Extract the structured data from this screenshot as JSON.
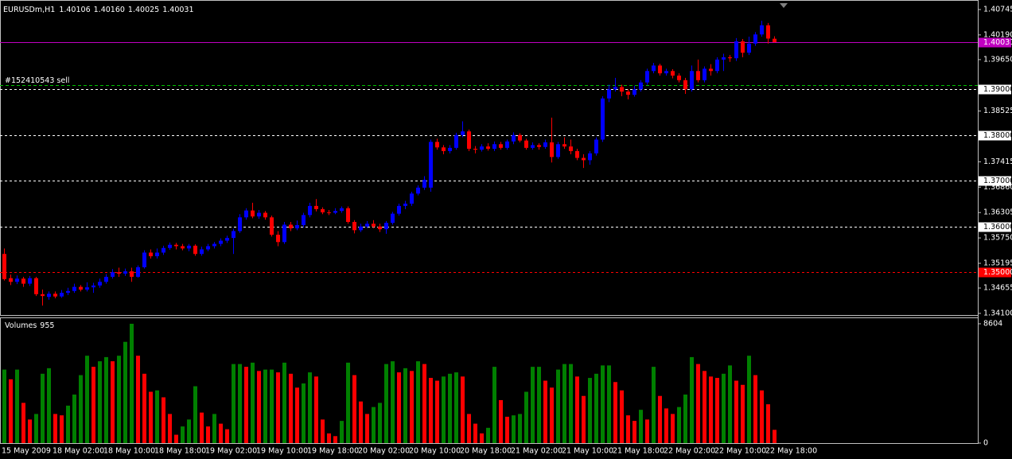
{
  "chart_data": [
    {
      "type": "candlestick",
      "title": "EURUSDm,H1",
      "ohlc_labels": [
        "1.40106",
        "1.40160",
        "1.40025",
        "1.40031"
      ],
      "categories": [
        "15 May 2009",
        null,
        null,
        null,
        null,
        null,
        null,
        null,
        "18 May 02:00",
        null,
        null,
        null,
        null,
        null,
        null,
        null,
        "18 May 10:00",
        null,
        null,
        null,
        null,
        null,
        null,
        null,
        "18 May 18:00",
        null,
        null,
        null,
        null,
        null,
        null,
        null,
        "19 May 02:00",
        null,
        null,
        null,
        null,
        null,
        null,
        null,
        "19 May 10:00",
        null,
        null,
        null,
        null,
        null,
        null,
        null,
        "19 May 18:00",
        null,
        null,
        null,
        null,
        null,
        null,
        null,
        "20 May 02:00",
        null,
        null,
        null,
        null,
        null,
        null,
        null,
        "20 May 10:00",
        null,
        null,
        null,
        null,
        null,
        null,
        null,
        "20 May 18:00",
        null,
        null,
        null,
        null,
        null,
        null,
        null,
        "21 May 02:00",
        null,
        null,
        null,
        null,
        null,
        null,
        null,
        "21 May 10:00",
        null,
        null,
        null,
        null,
        null,
        null,
        null,
        "21 May 18:00",
        null,
        null,
        null,
        null,
        null,
        null,
        null,
        "22 May 02:00",
        null,
        null,
        null,
        null,
        null,
        null,
        null,
        "22 May 10:00",
        null,
        null,
        null,
        null,
        null,
        null,
        null,
        "22 May 18:00",
        null
      ],
      "open": [
        1.354,
        1.3487,
        1.3479,
        1.3486,
        1.3475,
        1.3487,
        1.3452,
        1.3446,
        1.3453,
        1.3447,
        1.3455,
        1.3459,
        1.3468,
        1.3462,
        1.3467,
        1.3471,
        1.3479,
        1.349,
        1.35,
        1.3497,
        1.3502,
        1.349,
        1.3511,
        1.3543,
        1.3535,
        1.3543,
        1.3553,
        1.356,
        1.3557,
        1.3552,
        1.3558,
        1.354,
        1.355,
        1.3557,
        1.3562,
        1.3569,
        1.3575,
        1.359,
        1.362,
        1.3635,
        1.3622,
        1.363,
        1.362,
        1.3582,
        1.3566,
        1.3604,
        1.3596,
        1.3603,
        1.3625,
        1.3645,
        1.3638,
        1.3631,
        1.363,
        1.3634,
        1.364,
        1.361,
        1.3592,
        1.36,
        1.3606,
        1.36,
        1.3594,
        1.3608,
        1.3628,
        1.3645,
        1.365,
        1.3672,
        1.3685,
        1.3685,
        1.3785,
        1.3773,
        1.3765,
        1.3772,
        1.38,
        1.3808,
        1.377,
        1.3768,
        1.3775,
        1.377,
        1.378,
        1.3772,
        1.3786,
        1.38,
        1.3788,
        1.3772,
        1.3778,
        1.3774,
        1.3784,
        1.3752,
        1.378,
        1.3775,
        1.3765,
        1.375,
        1.3745,
        1.376,
        1.379,
        1.388,
        1.39,
        1.3905,
        1.3895,
        1.3888,
        1.39,
        1.3915,
        1.394,
        1.3952,
        1.3935,
        1.394,
        1.393,
        1.392,
        1.39,
        1.394,
        1.392,
        1.3945,
        1.394,
        1.3965,
        1.397,
        1.3968,
        1.4005,
        1.398,
        1.4,
        1.402,
        1.404,
        1.40106
      ],
      "high": [
        1.3552,
        1.3495,
        1.3493,
        1.349,
        1.3492,
        1.349,
        1.3462,
        1.3458,
        1.3458,
        1.3461,
        1.3466,
        1.3475,
        1.3472,
        1.3478,
        1.3477,
        1.3486,
        1.3496,
        1.3507,
        1.351,
        1.3508,
        1.351,
        1.3515,
        1.3548,
        1.355,
        1.3552,
        1.3558,
        1.3565,
        1.3564,
        1.3562,
        1.3562,
        1.3561,
        1.3556,
        1.3562,
        1.3566,
        1.3574,
        1.358,
        1.3595,
        1.3627,
        1.364,
        1.3652,
        1.3636,
        1.3634,
        1.3624,
        1.359,
        1.361,
        1.361,
        1.3613,
        1.363,
        1.3652,
        1.366,
        1.3642,
        1.3636,
        1.364,
        1.3644,
        1.3644,
        1.3614,
        1.3606,
        1.3612,
        1.3614,
        1.3606,
        1.3612,
        1.3632,
        1.365,
        1.3656,
        1.3676,
        1.369,
        1.371,
        1.379,
        1.3792,
        1.3778,
        1.3778,
        1.3805,
        1.383,
        1.3812,
        1.3776,
        1.378,
        1.3782,
        1.3786,
        1.3785,
        1.379,
        1.3806,
        1.3804,
        1.3792,
        1.3784,
        1.3782,
        1.379,
        1.3838,
        1.3785,
        1.3795,
        1.379,
        1.377,
        1.3758,
        1.3765,
        1.3795,
        1.3885,
        1.391,
        1.3925,
        1.391,
        1.39,
        1.3908,
        1.392,
        1.3945,
        1.3958,
        1.3956,
        1.3945,
        1.3944,
        1.3935,
        1.3925,
        1.3952,
        1.3965,
        1.395,
        1.3955,
        1.397,
        1.3978,
        1.3975,
        1.4012,
        1.401,
        1.4015,
        1.4025,
        1.405,
        1.4045,
        1.4016
      ],
      "low": [
        1.3482,
        1.3472,
        1.3474,
        1.3468,
        1.347,
        1.3448,
        1.3427,
        1.344,
        1.3443,
        1.3444,
        1.345,
        1.3455,
        1.3458,
        1.3458,
        1.3455,
        1.3466,
        1.3475,
        1.3486,
        1.349,
        1.3492,
        1.3479,
        1.3488,
        1.3508,
        1.353,
        1.353,
        1.3538,
        1.3549,
        1.355,
        1.3548,
        1.3546,
        1.3536,
        1.3536,
        1.3546,
        1.3552,
        1.3557,
        1.3564,
        1.354,
        1.3586,
        1.3615,
        1.3618,
        1.3617,
        1.3615,
        1.3578,
        1.3557,
        1.3562,
        1.359,
        1.3592,
        1.3598,
        1.362,
        1.3633,
        1.3627,
        1.3625,
        1.3627,
        1.363,
        1.3606,
        1.3585,
        1.3588,
        1.3596,
        1.3596,
        1.3588,
        1.3584,
        1.3604,
        1.3624,
        1.3638,
        1.3645,
        1.3668,
        1.368,
        1.3676,
        1.3768,
        1.3758,
        1.376,
        1.3768,
        1.3795,
        1.3765,
        1.376,
        1.3764,
        1.3766,
        1.3765,
        1.3768,
        1.3768,
        1.378,
        1.3784,
        1.3768,
        1.3768,
        1.3768,
        1.377,
        1.374,
        1.3748,
        1.377,
        1.3758,
        1.3745,
        1.3728,
        1.3735,
        1.3755,
        1.3785,
        1.3872,
        1.3895,
        1.3885,
        1.3878,
        1.3884,
        1.3895,
        1.391,
        1.3935,
        1.393,
        1.393,
        1.3924,
        1.3915,
        1.389,
        1.3895,
        1.3915,
        1.3915,
        1.393,
        1.3935,
        1.394,
        1.396,
        1.3962,
        1.397,
        1.3975,
        1.3995,
        1.4015,
        1.4,
        1.40025
      ],
      "close": [
        1.3485,
        1.3479,
        1.3486,
        1.3475,
        1.3487,
        1.3452,
        1.3448,
        1.3453,
        1.3447,
        1.3455,
        1.3459,
        1.3468,
        1.3462,
        1.3467,
        1.3471,
        1.3479,
        1.349,
        1.35,
        1.3497,
        1.3502,
        1.349,
        1.3511,
        1.3543,
        1.3535,
        1.3543,
        1.3553,
        1.356,
        1.3557,
        1.3552,
        1.3558,
        1.354,
        1.355,
        1.3557,
        1.3562,
        1.3569,
        1.3575,
        1.359,
        1.362,
        1.3635,
        1.3622,
        1.363,
        1.362,
        1.3582,
        1.3566,
        1.3604,
        1.3596,
        1.3603,
        1.3625,
        1.3645,
        1.3638,
        1.3631,
        1.363,
        1.3634,
        1.364,
        1.361,
        1.3592,
        1.36,
        1.3606,
        1.36,
        1.3594,
        1.3608,
        1.3628,
        1.3645,
        1.365,
        1.3672,
        1.3685,
        1.3702,
        1.3785,
        1.3773,
        1.3765,
        1.3772,
        1.38,
        1.3808,
        1.377,
        1.3768,
        1.3775,
        1.377,
        1.378,
        1.3772,
        1.3786,
        1.38,
        1.3788,
        1.3772,
        1.3778,
        1.3774,
        1.3784,
        1.3752,
        1.378,
        1.3775,
        1.3765,
        1.375,
        1.3745,
        1.376,
        1.379,
        1.388,
        1.39,
        1.3905,
        1.3895,
        1.3888,
        1.39,
        1.3915,
        1.394,
        1.3952,
        1.3935,
        1.394,
        1.393,
        1.392,
        1.39,
        1.394,
        1.392,
        1.3945,
        1.394,
        1.3965,
        1.397,
        1.3968,
        1.4005,
        1.398,
        1.4,
        1.402,
        1.404,
        1.4011,
        1.40031
      ],
      "up_color": "#0000ff",
      "down_color": "#ff0000",
      "ylim": [
        1.34047,
        1.40936
      ],
      "yticks": [
        1.40745,
        {
          "value": 1.4019,
          "label": "1.40190"
        },
        {
          "value": 1.3965,
          "label": "1.39650"
        },
        1.38525,
        1.37415,
        {
          "value": 1.3686,
          "label": "1.36860"
        },
        1.36305,
        {
          "value": 1.3575,
          "label": "1.35750"
        },
        1.35195,
        1.34655,
        {
          "value": 1.341,
          "label": "1.34100"
        }
      ],
      "levels": [
        {
          "value": 1.39,
          "label": "1.39000",
          "color": "#ffffff"
        },
        {
          "value": 1.38,
          "label": "1.38000",
          "color": "#ffffff"
        },
        {
          "value": 1.37,
          "label": "1.37000",
          "color": "#ffffff"
        },
        {
          "value": 1.36,
          "label": "1.36000",
          "color": "#ffffff"
        },
        {
          "value": 1.35,
          "label": "1.35000",
          "color": "#ff0000"
        }
      ],
      "order_line": {
        "value": 1.391,
        "label": "#152410543 sell",
        "color": "#00c000"
      },
      "bid_line": {
        "value": 1.40031,
        "label": "1.40031",
        "color": "#c000c0"
      }
    },
    {
      "type": "bar",
      "title": "Volumes",
      "values": [
        5300,
        4600,
        5300,
        2900,
        1700,
        2100,
        5000,
        5400,
        2100,
        2000,
        2700,
        3500,
        4900,
        6300,
        5500,
        5900,
        6200,
        5900,
        6300,
        7300,
        8604,
        6300,
        5000,
        3700,
        3800,
        3300,
        2100,
        600,
        1200,
        1700,
        4100,
        2200,
        1200,
        2100,
        1400,
        1000,
        5700,
        5700,
        5500,
        5800,
        5200,
        5300,
        5300,
        5100,
        5800,
        5000,
        4000,
        4300,
        5100,
        4800,
        1700,
        700,
        500,
        1600,
        5800,
        4900,
        3000,
        2100,
        2600,
        2900,
        5700,
        5900,
        5100,
        5400,
        5200,
        5900,
        5700,
        4700,
        4500,
        4800,
        5000,
        5100,
        4800,
        2100,
        1400,
        700,
        1100,
        5500,
        3100,
        1900,
        2000,
        2100,
        3700,
        5500,
        5500,
        4500,
        4000,
        5300,
        5700,
        5700,
        4800,
        3400,
        4700,
        5000,
        5600,
        5600,
        4400,
        3800,
        2000,
        1600,
        2400,
        1700,
        5500,
        3400,
        2500,
        2100,
        2600,
        3500,
        6200,
        5700,
        5200,
        4800,
        4700,
        5000,
        5600,
        4500,
        4200,
        6300,
        4900,
        3800,
        2800,
        955
      ],
      "up_color": "#008000",
      "down_color": "#ff0000",
      "ylim": [
        0,
        9063
      ],
      "yticks": [
        0,
        8604
      ]
    }
  ]
}
